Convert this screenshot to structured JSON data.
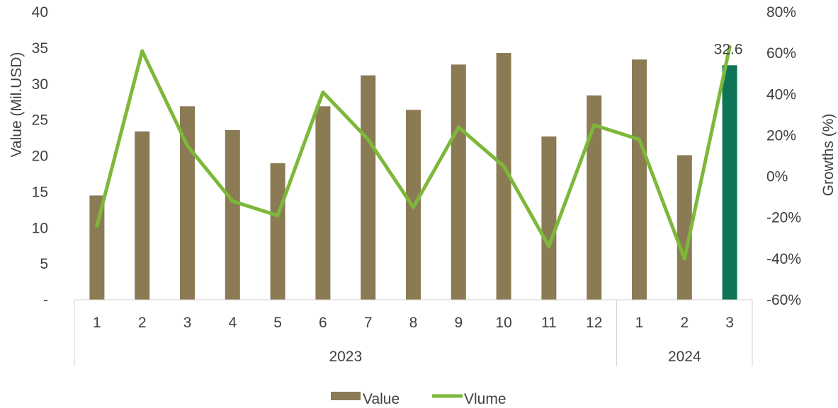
{
  "chart_data": {
    "type": "bar",
    "combo": "bar+line",
    "title": "",
    "ylabel": "Value (Mil.USD)",
    "y2label": "Growths (%)",
    "ylim": [
      0,
      40
    ],
    "y2lim": [
      -60,
      80
    ],
    "y_ticks": [
      "-",
      "5",
      "10",
      "15",
      "20",
      "25",
      "30",
      "35",
      "40"
    ],
    "y2_ticks": [
      "-60%",
      "-40%",
      "-20%",
      "0%",
      "20%",
      "40%",
      "60%",
      "80%"
    ],
    "categories": [
      "1",
      "2",
      "3",
      "4",
      "5",
      "6",
      "7",
      "8",
      "9",
      "10",
      "11",
      "12",
      "1",
      "2",
      "3"
    ],
    "groups": [
      {
        "label": "2023",
        "count": 12
      },
      {
        "label": "2024",
        "count": 3
      }
    ],
    "series": [
      {
        "name": "Value",
        "type": "bar",
        "axis": "left",
        "color": "#8B7B54",
        "highlight_color": "#0E7458",
        "highlight_index": 14,
        "values": [
          14.5,
          23.4,
          26.9,
          23.6,
          19.0,
          26.9,
          31.2,
          26.4,
          32.7,
          34.3,
          22.7,
          28.4,
          33.4,
          20.1,
          32.6
        ]
      },
      {
        "name": "Vlume",
        "type": "line",
        "axis": "right",
        "color": "#7DB83A",
        "values": [
          -24,
          61,
          15,
          -12,
          -19,
          41,
          18,
          -15,
          24,
          5,
          -34,
          25,
          18,
          -40,
          63
        ]
      }
    ],
    "data_labels": [
      {
        "index": 14,
        "text": "32.6"
      }
    ],
    "legend": "bottom",
    "grid": false
  }
}
